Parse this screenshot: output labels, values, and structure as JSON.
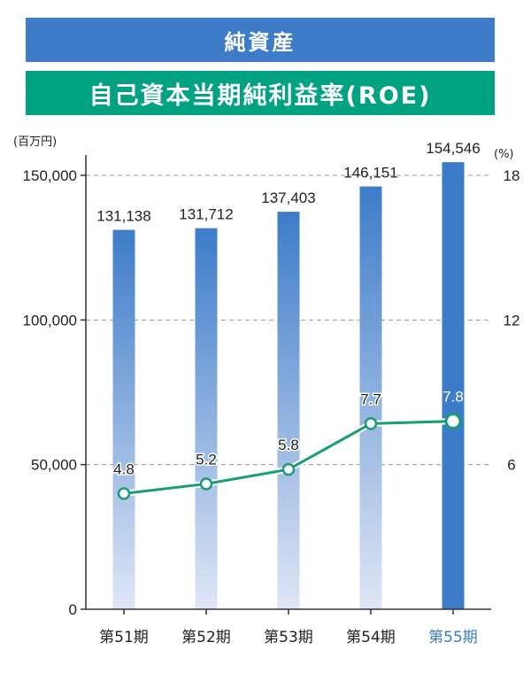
{
  "banners": {
    "net_assets": "純資産",
    "roe": "自己資本当期純利益率(ROE)"
  },
  "chart_data": {
    "type": "bar+line",
    "categories": [
      "第51期",
      "第52期",
      "第53期",
      "第54期",
      "第55期"
    ],
    "highlight_category": "第55期",
    "series": [
      {
        "name": "純資産",
        "type": "bar",
        "axis": "left",
        "unit": "(百万円)",
        "values": [
          131138,
          131712,
          137403,
          146151,
          154546
        ],
        "labels": [
          "131,138",
          "131,712",
          "137,403",
          "146,151",
          "154,546"
        ]
      },
      {
        "name": "自己資本当期純利益率(ROE)",
        "type": "line",
        "axis": "right",
        "unit": "(%)",
        "values": [
          4.8,
          5.2,
          5.8,
          7.7,
          7.8
        ],
        "labels": [
          "4.8",
          "5.2",
          "5.8",
          "7.7",
          "7.8"
        ]
      }
    ],
    "y_left": {
      "range": [
        0,
        150000
      ],
      "ticks": [
        0,
        50000,
        100000,
        150000
      ],
      "tick_labels": [
        "0",
        "50,000",
        "100,000",
        "150,000"
      ]
    },
    "y_right": {
      "range": [
        0,
        18
      ],
      "ticks": [
        6,
        12,
        18
      ],
      "tick_labels": [
        "6",
        "12",
        "18"
      ]
    },
    "grid": "dashed horizontal",
    "colors": {
      "bar_top": "#3d7cc9",
      "bar_bottom": "#dfe6f6",
      "bar_highlight": "#3d7cc9",
      "line": "#1a9c74",
      "highlight_text": "#3d7cc9"
    }
  }
}
